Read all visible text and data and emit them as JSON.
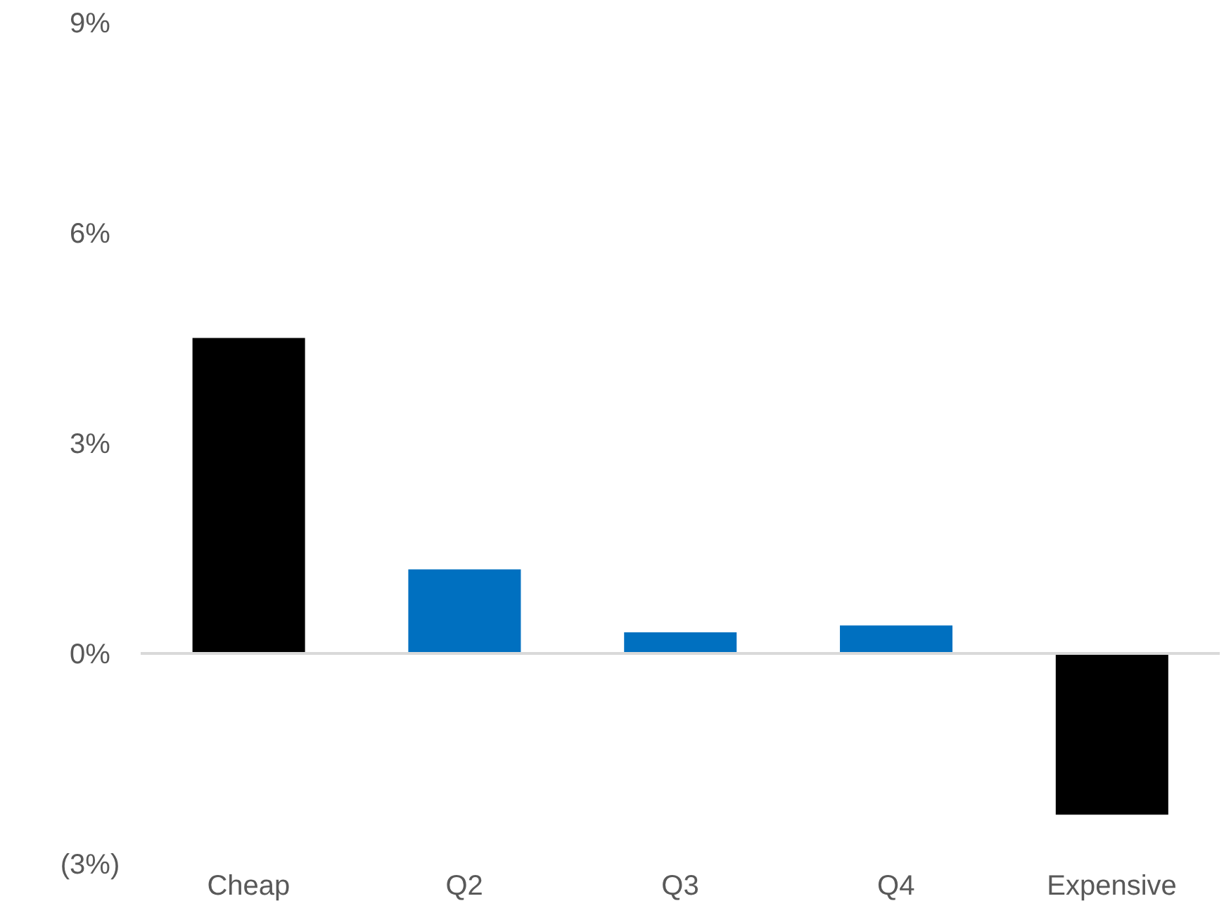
{
  "chart_data": {
    "type": "bar",
    "categories": [
      "Cheap",
      "Q2",
      "Q3",
      "Q4",
      "Expensive"
    ],
    "values": [
      4.5,
      1.2,
      0.3,
      0.4,
      -2.3
    ],
    "colors": [
      "#000000",
      "#0070c0",
      "#0070c0",
      "#0070c0",
      "#000000"
    ],
    "ylim": [
      -3,
      9
    ],
    "yticks": [
      {
        "value": -3,
        "label": "(3%)"
      },
      {
        "value": 0,
        "label": "0%"
      },
      {
        "value": 3,
        "label": "3%"
      },
      {
        "value": 6,
        "label": "6%"
      },
      {
        "value": 9,
        "label": "9%"
      }
    ],
    "ref_lines": [
      {
        "axis": "y",
        "value": 0,
        "color": "#d9d9d9"
      }
    ]
  }
}
